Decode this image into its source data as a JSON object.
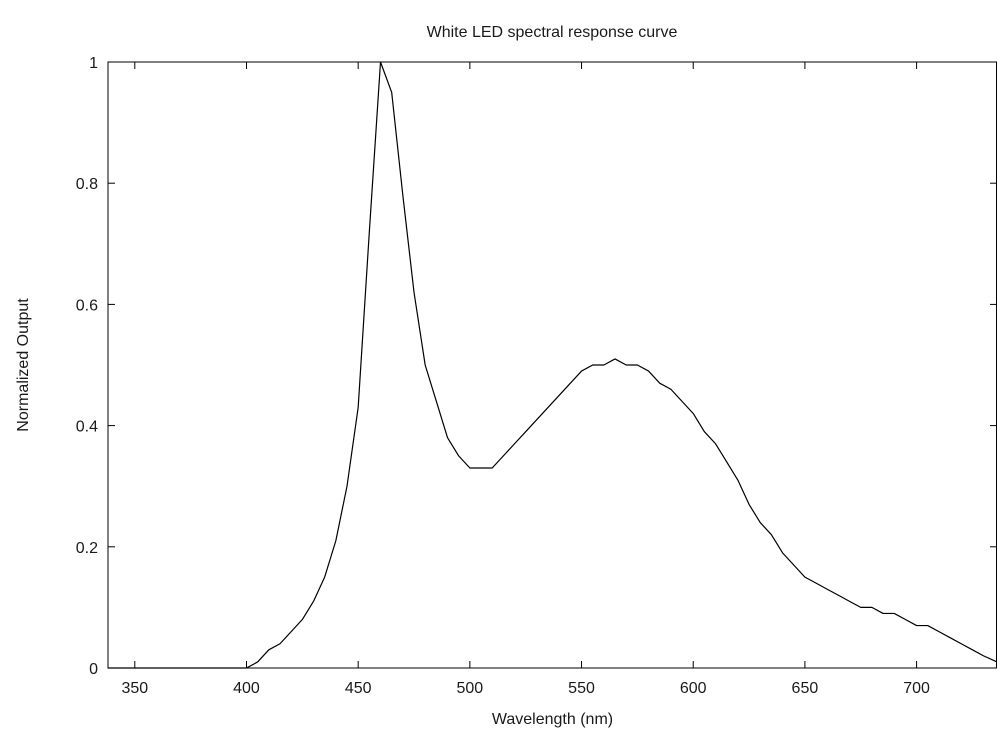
{
  "chart_data": {
    "type": "line",
    "title": "White LED spectral response curve",
    "xlabel": "Wavelength (nm)",
    "ylabel": "Normalized Output",
    "xlim": [
      338,
      736
    ],
    "ylim": [
      0,
      1
    ],
    "grid": false,
    "legend": "none",
    "x_ticks": [
      350,
      400,
      450,
      500,
      550,
      600,
      650,
      700
    ],
    "x_tick_labels": [
      "350",
      "400",
      "450",
      "500",
      "550",
      "600",
      "650",
      "700"
    ],
    "y_ticks": [
      0,
      0.2,
      0.4,
      0.6,
      0.8,
      1
    ],
    "y_tick_labels": [
      "0",
      "0.2",
      "0.4",
      "0.6",
      "0.8",
      "1"
    ],
    "series": [
      {
        "color": "#000000",
        "x": [
          338,
          350,
          400,
          405,
          410,
          415,
          420,
          425,
          430,
          435,
          440,
          445,
          450,
          455,
          460,
          465,
          470,
          475,
          480,
          485,
          490,
          495,
          500,
          505,
          510,
          515,
          520,
          525,
          530,
          535,
          540,
          545,
          550,
          555,
          560,
          565,
          570,
          575,
          580,
          585,
          590,
          595,
          600,
          605,
          610,
          615,
          620,
          625,
          630,
          635,
          640,
          645,
          650,
          655,
          660,
          665,
          670,
          675,
          680,
          685,
          690,
          695,
          700,
          705,
          710,
          715,
          720,
          725,
          730,
          736
        ],
        "y": [
          0,
          0,
          0,
          0.01,
          0.03,
          0.04,
          0.06,
          0.08,
          0.11,
          0.15,
          0.21,
          0.3,
          0.43,
          0.72,
          1.0,
          0.95,
          0.78,
          0.62,
          0.5,
          0.44,
          0.38,
          0.35,
          0.33,
          0.33,
          0.33,
          0.35,
          0.37,
          0.39,
          0.41,
          0.43,
          0.45,
          0.47,
          0.49,
          0.5,
          0.5,
          0.51,
          0.5,
          0.5,
          0.49,
          0.47,
          0.46,
          0.44,
          0.42,
          0.39,
          0.37,
          0.34,
          0.31,
          0.27,
          0.24,
          0.22,
          0.19,
          0.17,
          0.15,
          0.14,
          0.13,
          0.12,
          0.11,
          0.1,
          0.1,
          0.09,
          0.09,
          0.08,
          0.07,
          0.07,
          0.06,
          0.05,
          0.04,
          0.03,
          0.02,
          0.01
        ]
      }
    ]
  }
}
